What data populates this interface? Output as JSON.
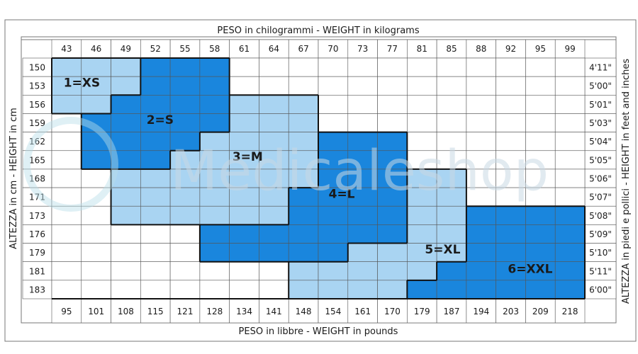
{
  "chart_data": {
    "type": "table",
    "top_title": "PESO in chilogrammi -  WEIGHT in kilograms",
    "bottom_title": "PESO in libbre -  WEIGHT in pounds",
    "left_title": "ALTEZZA in cm  -  HEIGHT in cm",
    "right_title": "ALTEZZA in piedi e pollici - HEIGHT in feet and inches",
    "weights_kg": [
      "43",
      "46",
      "49",
      "52",
      "55",
      "58",
      "61",
      "64",
      "67",
      "70",
      "73",
      "77",
      "81",
      "85",
      "88",
      "92",
      "95",
      "99"
    ],
    "weights_lb": [
      "95",
      "101",
      "108",
      "115",
      "121",
      "128",
      "134",
      "141",
      "148",
      "154",
      "161",
      "170",
      "179",
      "187",
      "194",
      "203",
      "209",
      "218"
    ],
    "heights_cm": [
      "150",
      "153",
      "156",
      "159",
      "162",
      "165",
      "168",
      "171",
      "173",
      "176",
      "179",
      "181",
      "183"
    ],
    "heights_ft": [
      "4'11\"",
      "5'00\"",
      "5'01\"",
      "5'03\"",
      "5'04\"",
      "5'05\"",
      "5'06\"",
      "5'07\"",
      "5'08\"",
      "5'09\"",
      "5'10\"",
      "5'11\"",
      "6'00\""
    ],
    "sizes": [
      {
        "label": "1=XS",
        "code": 1
      },
      {
        "label": "2=S",
        "code": 2
      },
      {
        "label": "3=M",
        "code": 3
      },
      {
        "label": "4=L",
        "code": 4
      },
      {
        "label": "5=XL",
        "code": 5
      },
      {
        "label": "6=XXL",
        "code": 6
      }
    ],
    "size_grid": [
      [
        1,
        1,
        1,
        2,
        2,
        2,
        0,
        0,
        0,
        0,
        0,
        0,
        0,
        0,
        0,
        0,
        0,
        0
      ],
      [
        1,
        1,
        1,
        2,
        2,
        2,
        0,
        0,
        0,
        0,
        0,
        0,
        0,
        0,
        0,
        0,
        0,
        0
      ],
      [
        1,
        1,
        2,
        2,
        2,
        2,
        3,
        3,
        3,
        0,
        0,
        0,
        0,
        0,
        0,
        0,
        0,
        0
      ],
      [
        0,
        2,
        2,
        2,
        2,
        2,
        3,
        3,
        3,
        0,
        0,
        0,
        0,
        0,
        0,
        0,
        0,
        0
      ],
      [
        0,
        2,
        2,
        2,
        2,
        3,
        3,
        3,
        3,
        4,
        4,
        4,
        0,
        0,
        0,
        0,
        0,
        0
      ],
      [
        0,
        2,
        2,
        2,
        3,
        3,
        3,
        3,
        3,
        4,
        4,
        4,
        0,
        0,
        0,
        0,
        0,
        0
      ],
      [
        0,
        0,
        3,
        3,
        3,
        3,
        3,
        3,
        3,
        4,
        4,
        4,
        5,
        5,
        0,
        0,
        0,
        0
      ],
      [
        0,
        0,
        3,
        3,
        3,
        3,
        3,
        3,
        4,
        4,
        4,
        4,
        5,
        5,
        0,
        0,
        0,
        0
      ],
      [
        0,
        0,
        3,
        3,
        3,
        3,
        3,
        3,
        4,
        4,
        4,
        4,
        5,
        5,
        6,
        6,
        6,
        6
      ],
      [
        0,
        0,
        0,
        0,
        0,
        4,
        4,
        4,
        4,
        4,
        4,
        4,
        5,
        5,
        6,
        6,
        6,
        6
      ],
      [
        0,
        0,
        0,
        0,
        0,
        4,
        4,
        4,
        4,
        4,
        5,
        5,
        5,
        5,
        6,
        6,
        6,
        6
      ],
      [
        0,
        0,
        0,
        0,
        0,
        0,
        0,
        0,
        5,
        5,
        5,
        5,
        5,
        6,
        6,
        6,
        6,
        6
      ],
      [
        0,
        0,
        0,
        0,
        0,
        0,
        0,
        0,
        5,
        5,
        5,
        5,
        6,
        6,
        6,
        6,
        6,
        6
      ]
    ],
    "colors": {
      "light": "#a9d4f2",
      "dark": "#1a86dd",
      "empty": "#ffffff",
      "grid": "#555555",
      "zone_border": "#111111"
    },
    "watermark": "Medicaleshop"
  }
}
